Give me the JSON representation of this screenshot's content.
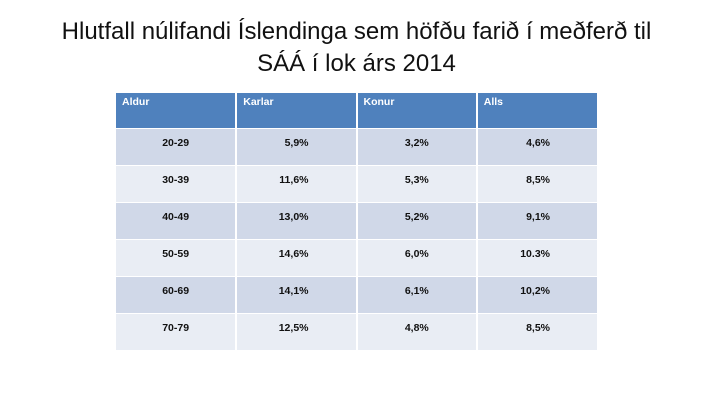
{
  "slide": {
    "title_line1": "Hlutfall núlifandi Íslendinga sem höfðu farið í meðferð til",
    "title_line2": "SÁÁ í lok árs 2014"
  },
  "table": {
    "headers": [
      "Aldur",
      "Karlar",
      "Konur",
      "Alls"
    ],
    "rows": [
      [
        "20-29",
        "5,9%",
        "3,2%",
        "4,6%"
      ],
      [
        "30-39",
        "11,6%",
        "5,3%",
        "8,5%"
      ],
      [
        "40-49",
        "13,0%",
        "5,2%",
        "9,1%"
      ],
      [
        "50-59",
        "14,6%",
        "6,0%",
        "10.3%"
      ],
      [
        "60-69",
        "14,1%",
        "6,1%",
        "10,2%"
      ],
      [
        "70-79",
        "12,5%",
        "4,8%",
        "8,5%"
      ]
    ]
  },
  "colors": {
    "header_fill": "#4f81bd",
    "row_odd_fill": "#d0d8e8",
    "row_even_fill": "#e9edf4"
  }
}
